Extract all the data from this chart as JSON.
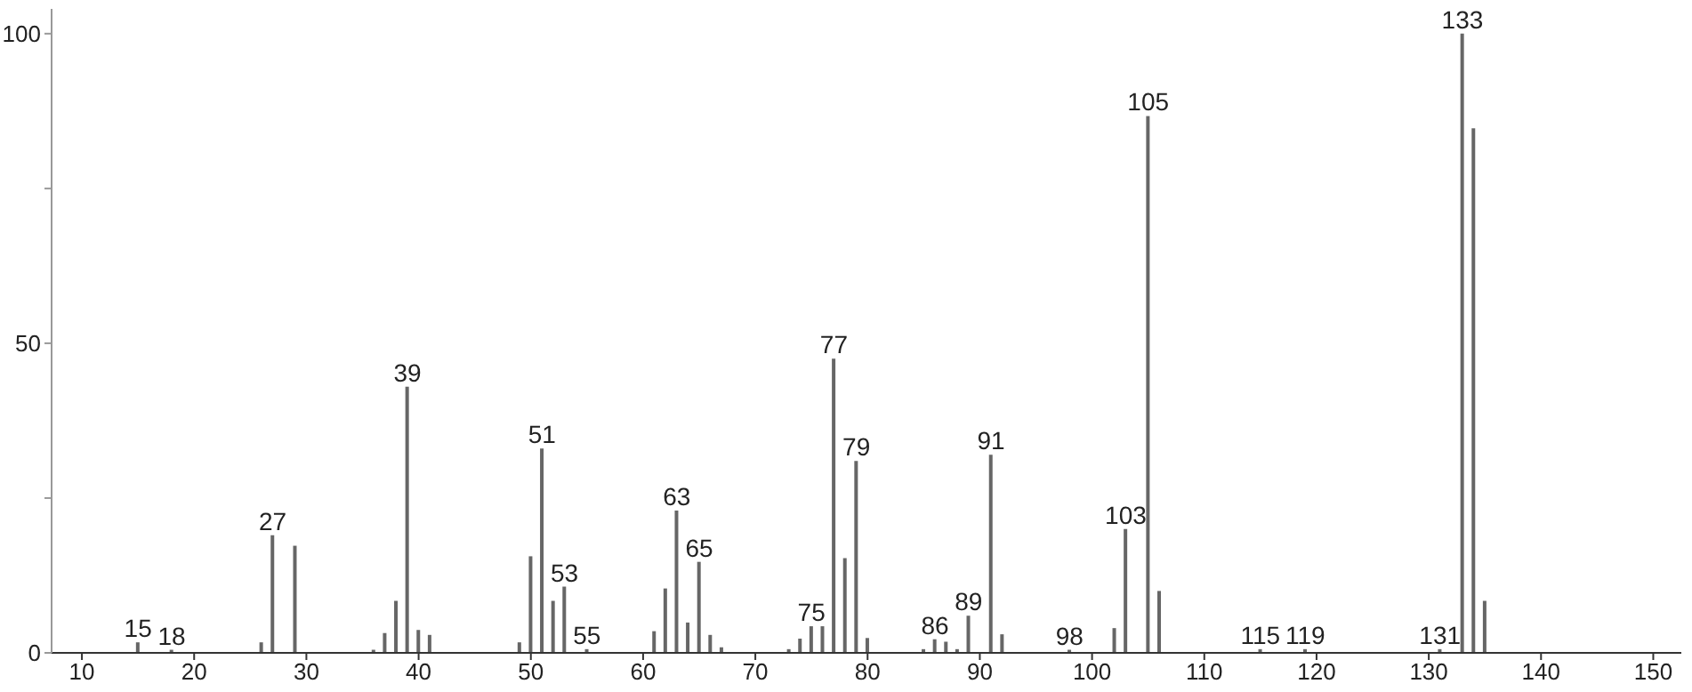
{
  "chart_data": {
    "type": "bar",
    "x": [
      15,
      18,
      26,
      27,
      29,
      36,
      37,
      38,
      39,
      40,
      41,
      49,
      50,
      51,
      52,
      53,
      55,
      61,
      62,
      63,
      64,
      65,
      66,
      67,
      73,
      74,
      75,
      76,
      77,
      78,
      79,
      80,
      85,
      86,
      87,
      88,
      89,
      91,
      92,
      98,
      102,
      103,
      105,
      106,
      115,
      119,
      131,
      133,
      134,
      135
    ],
    "values": [
      1.7,
      0.5,
      1.7,
      19,
      17.3,
      0.5,
      3.2,
      8.4,
      43,
      3.7,
      2.9,
      1.7,
      15.6,
      33,
      8.4,
      10.7,
      0.6,
      3.5,
      10.4,
      23,
      4.9,
      14.7,
      2.9,
      0.9,
      0.6,
      2.3,
      4.3,
      4.3,
      47.5,
      15.3,
      31,
      2.4,
      0.6,
      2.2,
      1.8,
      0.6,
      6,
      32,
      3,
      0.5,
      4,
      20,
      86.7,
      10,
      0.6,
      0.6,
      0.6,
      100,
      84.7,
      8.4
    ],
    "color": "#666666",
    "xlim": [
      7.3,
      152.5
    ],
    "xticks": [
      10,
      20,
      30,
      40,
      50,
      60,
      70,
      80,
      90,
      100,
      110,
      120,
      130,
      140,
      150
    ],
    "ylim": [
      0,
      104
    ],
    "yticks": [
      0,
      {
        "value": 25,
        "label": null
      },
      50,
      {
        "value": 75,
        "label": null
      },
      100
    ],
    "annotations": [
      {
        "text": "15",
        "x": 15,
        "y": 1.7
      },
      {
        "text": "18",
        "x": 18,
        "y": 0.5
      },
      {
        "text": "27",
        "x": 27,
        "y": 19
      },
      {
        "text": "39",
        "x": 39,
        "y": 43
      },
      {
        "text": "51",
        "x": 51,
        "y": 33
      },
      {
        "text": "53",
        "x": 53,
        "y": 10.7
      },
      {
        "text": "55",
        "x": 55,
        "y": 0.6
      },
      {
        "text": "63",
        "x": 63,
        "y": 23
      },
      {
        "text": "65",
        "x": 65,
        "y": 14.7
      },
      {
        "text": "75",
        "x": 75,
        "y": 4.3
      },
      {
        "text": "77",
        "x": 77,
        "y": 47.5
      },
      {
        "text": "79",
        "x": 79,
        "y": 31
      },
      {
        "text": "86",
        "x": 86,
        "y": 2.2
      },
      {
        "text": "89",
        "x": 89,
        "y": 6
      },
      {
        "text": "91",
        "x": 91,
        "y": 32
      },
      {
        "text": "98",
        "x": 98,
        "y": 0.5
      },
      {
        "text": "103",
        "x": 103,
        "y": 20
      },
      {
        "text": "105",
        "x": 105,
        "y": 86.7
      },
      {
        "text": "115",
        "x": 115,
        "y": 0.6
      },
      {
        "text": "119",
        "x": 119,
        "y": 0.6
      },
      {
        "text": "131",
        "x": 131,
        "y": 0.6
      },
      {
        "text": "133",
        "x": 133,
        "y": 100
      }
    ]
  }
}
